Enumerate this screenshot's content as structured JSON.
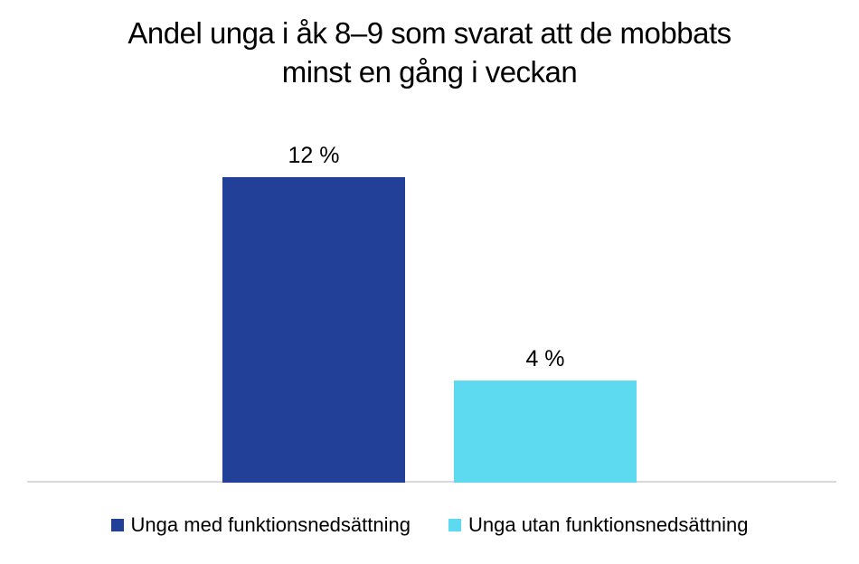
{
  "title": {
    "lines": [
      "Andel unga i åk 8–9 som svarat att de mobbats",
      "minst en gång i veckan"
    ]
  },
  "chart_data": {
    "type": "bar",
    "title": "Andel unga i åk 8–9 som svarat att de mobbats minst en gång i veckan",
    "categories": [
      "Unga med funktionsnedsättning",
      "Unga utan funktionsnedsättning"
    ],
    "values": [
      12,
      4
    ],
    "unit": "%",
    "data_labels": [
      "12 %",
      "4 %"
    ],
    "colors": [
      "#234099",
      "#5dd9f0"
    ],
    "xlabel": "",
    "ylabel": "",
    "ylim": [
      0,
      14
    ],
    "grid": false,
    "y_axis_visible": false,
    "x_axis_line_color": "#d9d9d9",
    "legend_position": "bottom"
  },
  "colors": {
    "background": "#ffffff",
    "text": "#000000"
  }
}
